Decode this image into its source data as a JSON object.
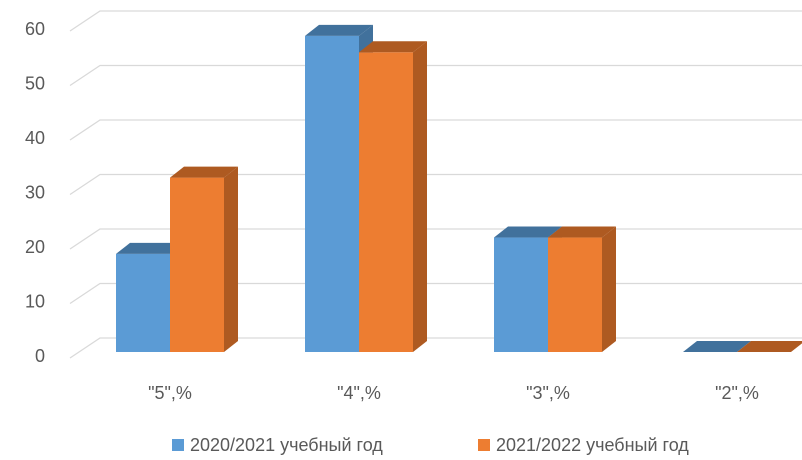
{
  "chart_data": {
    "type": "bar",
    "style": "3d-clustered-column",
    "categories": [
      "\"5\",%",
      "\"4\",%",
      "\"3\",%",
      "\"2\",%"
    ],
    "series": [
      {
        "name": "2020/2021 учебный год",
        "values": [
          18,
          58,
          21,
          0
        ],
        "color": "#5b9bd5",
        "top_color": "#41719c",
        "side_color": "#41719c"
      },
      {
        "name": "2021/2022 учебный год",
        "values": [
          32,
          55,
          21,
          0
        ],
        "color": "#ed7d31",
        "top_color": "#ae5a21",
        "side_color": "#ae5a21"
      }
    ],
    "y_ticks": [
      "0",
      "10",
      "20",
      "30",
      "40",
      "50",
      "60"
    ],
    "ylim": [
      0,
      60
    ],
    "grid": true,
    "legend": "bottom",
    "title": "",
    "xlabel": "",
    "ylabel": ""
  }
}
